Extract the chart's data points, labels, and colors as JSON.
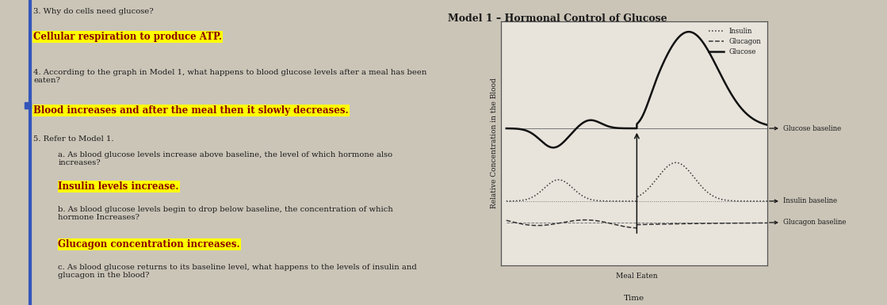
{
  "title": "Model 1 – Hormonal Control of Glucose",
  "ylabel": "Relative Concentration in the Blood",
  "xlabel": "Time",
  "meal_label": "Meal Eaten",
  "legend_insulin": "Insulin",
  "legend_glucagon": "Glucagon",
  "legend_glucose": "Glucose",
  "annotation_glucose_baseline": "Glucose baseline",
  "annotation_insulin_baseline": "Insulin baseline",
  "annotation_glucagon_baseline": "Glucagon baseline",
  "bg_color": "#cbc5b8",
  "left_bg_color": "#c3bdb0",
  "plot_bg_color": "#e8e4dc",
  "highlight_color": "#ffff00",
  "text_color": "#1a1a1a",
  "dark_red": "#8B0000",
  "blue_marker": "#3355bb",
  "q3_text": "3. Why do cells need glucose?",
  "ans3_text": "Cellular respiration to produce ATP.",
  "q4_text": "4. According to the graph in Model 1, what happens to blood glucose levels after a meal has been\neaten?",
  "ans4_text": "Blood increases and after the meal then it slowly decreases.",
  "q5_text": "5. Refer to Model 1.",
  "q5a_text": "a. As blood glucose levels increase above baseline, the level of which hormone also\nincreases?",
  "ans5a_text": "Insulin levels increase.",
  "q5b_text": "b. As blood glucose levels begin to drop below baseline, the concentration of which\nhormone Increases?",
  "ans5b_text": "Glucagon concentration increases.",
  "q5c_text": "c. As blood glucose returns to its baseline level, what happens to the levels of insulin and\nglucagon in the blood?",
  "glucose_baseline": 0.62,
  "insulin_baseline": 0.28,
  "glucagon_baseline": 0.18,
  "meal_time": 5.0
}
